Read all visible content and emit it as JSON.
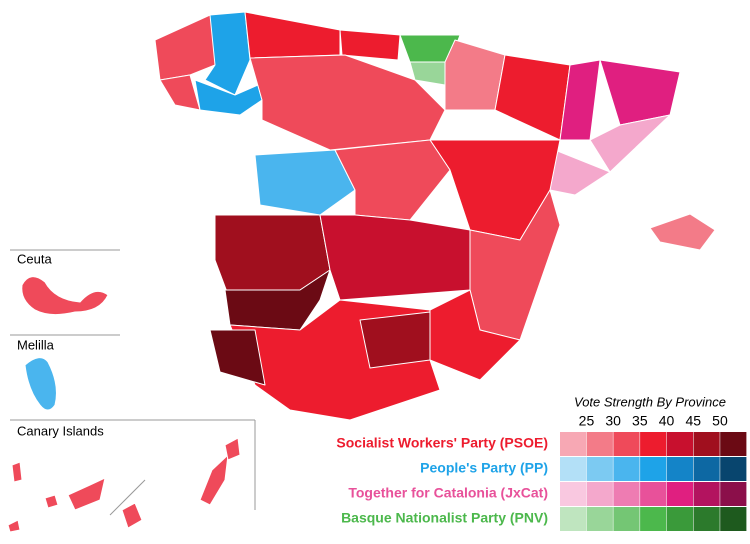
{
  "insets": [
    {
      "label": "Ceuta"
    },
    {
      "label": "Melilla"
    },
    {
      "label": "Canary Islands"
    }
  ],
  "legend": {
    "title": "Vote Strength By Province",
    "ticks": [
      25,
      30,
      35,
      40,
      45,
      50
    ],
    "parties": [
      {
        "name": "Socialist Workers' Party (PSOE)",
        "color": "#ed1c2e",
        "swatches": [
          "#f7a8b4",
          "#f37b88",
          "#ef4a5a",
          "#ed1c2e",
          "#c8102e",
          "#a00f1e",
          "#6b0a14"
        ]
      },
      {
        "name": "People's Party (PP)",
        "color": "#1ea3e8",
        "swatches": [
          "#b3e0f7",
          "#7ccaf2",
          "#4ab5ee",
          "#1ea3e8",
          "#1484c8",
          "#0d68a3",
          "#08456e"
        ]
      },
      {
        "name": "Together for Catalonia (JxCat)",
        "color": "#e8519a",
        "swatches": [
          "#f9c8e0",
          "#f4a8cc",
          "#ee7cb2",
          "#e8519a",
          "#e01f80",
          "#b3135f",
          "#8b0f4a"
        ]
      },
      {
        "name": "Basque Nationalist Party (PNV)",
        "color": "#4cb84c",
        "swatches": [
          "#bfe5bf",
          "#99d699",
          "#74c674",
          "#4cb84c",
          "#3a9a3a",
          "#2c7a2c",
          "#1e5a1e"
        ]
      }
    ]
  }
}
